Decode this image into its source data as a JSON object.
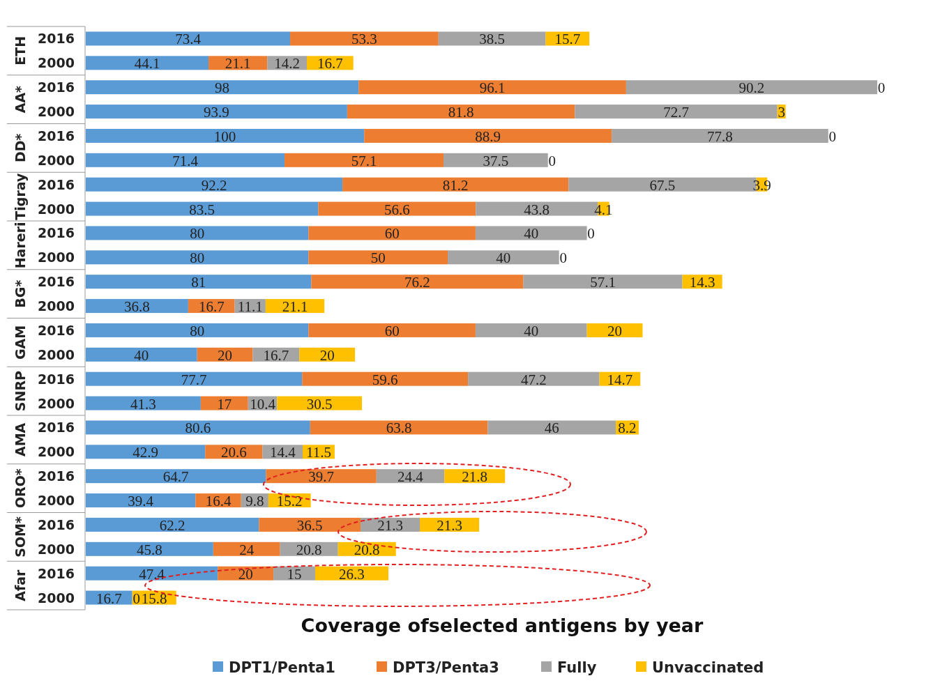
{
  "chart_data": {
    "type": "bar",
    "orientation": "horizontal",
    "stacked": true,
    "data_labels": true,
    "legend": "bottom",
    "title": "Coverage ofselected antigens by year",
    "categories": [
      "2016",
      "2000",
      "2016",
      "2000",
      "2016",
      "2000",
      "2016",
      "2000",
      "2016",
      "2000",
      "2016",
      "2000",
      "2016",
      "2000",
      "2016",
      "2000",
      "2016",
      "2000",
      "2016",
      "2000",
      "2016",
      "2000",
      "2016",
      "2000"
    ],
    "annotations": [
      "ETH",
      "AA*",
      "DD*",
      "Tigray",
      "Hareri",
      "BG*",
      "GAM",
      "SNRP",
      "AMA",
      "ORO*",
      "SOM*",
      "Afar"
    ],
    "series": [
      {
        "name": "DPT1/Penta1",
        "color": "#5b9bd5",
        "values": [
          73.4,
          44.1,
          98,
          93.9,
          100,
          71.4,
          92.2,
          83.5,
          80,
          80,
          81,
          36.8,
          80,
          40,
          77.7,
          41.3,
          80.6,
          42.9,
          64.7,
          39.4,
          62.2,
          45.8,
          47.4,
          16.7
        ]
      },
      {
        "name": "DPT3/Penta3",
        "color": "#ed7d31",
        "values": [
          53.3,
          21.1,
          96.1,
          81.8,
          88.9,
          57.1,
          81.2,
          56.6,
          60,
          50,
          76.2,
          16.7,
          60,
          20,
          59.6,
          17,
          63.8,
          20.6,
          39.7,
          16.4,
          36.5,
          24,
          20,
          0
        ]
      },
      {
        "name": "Fully",
        "color": "#a5a5a5",
        "values": [
          38.5,
          14.2,
          90.2,
          72.7,
          77.8,
          37.5,
          67.5,
          43.8,
          40,
          40,
          57.1,
          11.1,
          40,
          16.7,
          47.2,
          10.4,
          46,
          14.4,
          24.4,
          9.8,
          21.3,
          20.8,
          15,
          null
        ]
      },
      {
        "name": "Unvaccinated",
        "color": "#ffc000",
        "values": [
          15.7,
          16.7,
          0,
          3,
          0,
          0,
          3.9,
          4.1,
          0,
          0,
          14.3,
          21.1,
          20,
          20,
          14.7,
          30.5,
          8.2,
          11.5,
          21.8,
          15.2,
          21.3,
          20.8,
          26.3,
          15.8
        ]
      }
    ]
  }
}
